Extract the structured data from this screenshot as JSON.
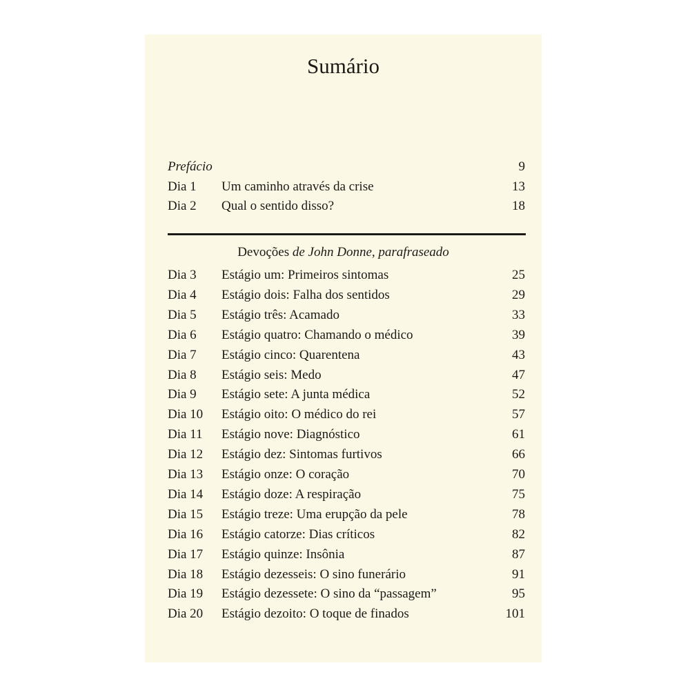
{
  "title": "Sumário",
  "intro": [
    {
      "dia": "",
      "name": "Prefácio",
      "page": "9",
      "italic": true
    },
    {
      "dia": "Dia 1",
      "name": "Um caminho através da crise",
      "page": "13"
    },
    {
      "dia": "Dia 2",
      "name": "Qual o sentido disso?",
      "page": "18"
    }
  ],
  "section": {
    "prefix": "Devoções ",
    "italic": "de John Donne, parafraseado"
  },
  "entries": [
    {
      "dia": "Dia 3",
      "name": "Estágio um: Primeiros sintomas",
      "page": "25"
    },
    {
      "dia": "Dia 4",
      "name": "Estágio dois: Falha dos sentidos",
      "page": "29"
    },
    {
      "dia": "Dia 5",
      "name": "Estágio três: Acamado",
      "page": "33"
    },
    {
      "dia": "Dia 6",
      "name": "Estágio quatro: Chamando o médico",
      "page": "39"
    },
    {
      "dia": "Dia 7",
      "name": "Estágio cinco: Quarentena",
      "page": "43"
    },
    {
      "dia": "Dia 8",
      "name": "Estágio seis: Medo",
      "page": "47"
    },
    {
      "dia": "Dia 9",
      "name": "Estágio sete: A junta médica",
      "page": "52"
    },
    {
      "dia": "Dia 10",
      "name": "Estágio oito: O médico do rei",
      "page": "57"
    },
    {
      "dia": "Dia 11",
      "name": "Estágio nove: Diagnóstico",
      "page": "61"
    },
    {
      "dia": "Dia 12",
      "name": "Estágio dez: Sintomas furtivos",
      "page": "66"
    },
    {
      "dia": "Dia 13",
      "name": "Estágio onze: O coração",
      "page": "70"
    },
    {
      "dia": "Dia 14",
      "name": "Estágio doze: A respiração",
      "page": "75"
    },
    {
      "dia": "Dia 15",
      "name": "Estágio treze: Uma erupção da pele",
      "page": "78"
    },
    {
      "dia": "Dia 16",
      "name": "Estágio catorze: Dias críticos",
      "page": "82"
    },
    {
      "dia": "Dia 17",
      "name": "Estágio quinze: Insônia",
      "page": "87"
    },
    {
      "dia": "Dia 18",
      "name": "Estágio dezesseis: O sino funerário",
      "page": "91"
    },
    {
      "dia": "Dia 19",
      "name": "Estágio dezessete: O sino da “passagem”",
      "page": "95"
    },
    {
      "dia": "Dia 20",
      "name": "Estágio dezoito: O toque de finados",
      "page": "101"
    }
  ]
}
